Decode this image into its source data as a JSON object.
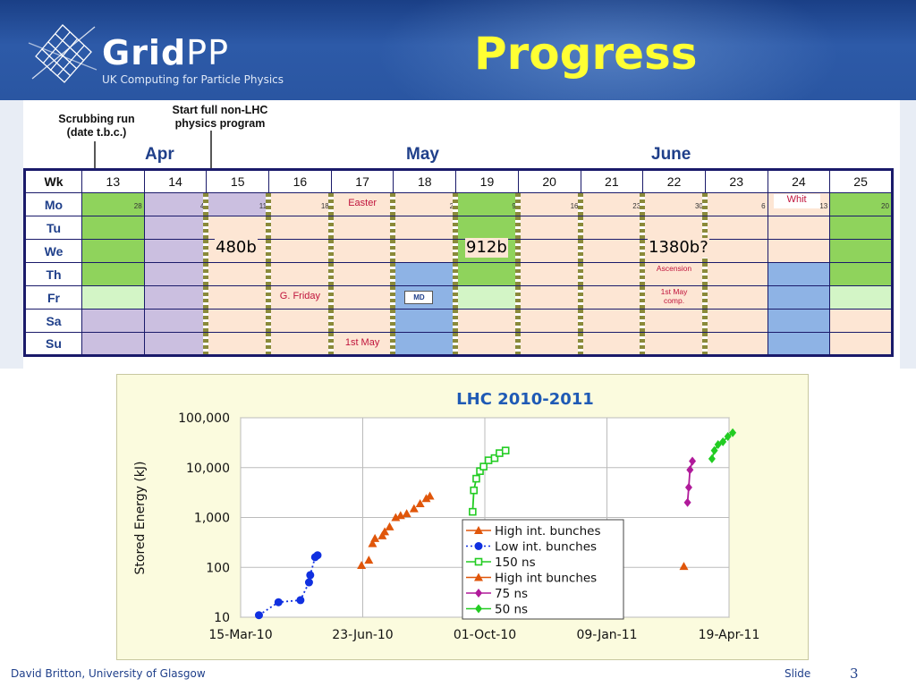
{
  "header": {
    "logo_name": "GridPP",
    "logo_bold": "Grid",
    "logo_light": "PP",
    "logo_subtitle": "UK Computing for Particle Physics",
    "slide_title": "Progress"
  },
  "schedule": {
    "annotation_scrubbing": "Scrubbing run\n(date t.b.c.)",
    "annotation_start": "Start  full non-LHC\nphysics program",
    "months": [
      "Apr",
      "May",
      "June"
    ],
    "week_header": "Wk",
    "weeks": [
      "13",
      "14",
      "15",
      "16",
      "17",
      "18",
      "19",
      "20",
      "21",
      "22",
      "23",
      "24",
      "25"
    ],
    "days": [
      "Mo",
      "Tu",
      "We",
      "Th",
      "Fr",
      "Sa",
      "Su"
    ],
    "monday_dates": [
      "28",
      "4",
      "11",
      "18",
      "",
      "2",
      "9",
      "16",
      "23",
      "30",
      "6",
      "13",
      "20"
    ],
    "events": {
      "easter": "Easter",
      "good_friday": "G. Friday",
      "may_day": "1st May",
      "md": "MD",
      "ascension": "Ascension",
      "may_comp": "1st May\ncomp.",
      "whit": "Whit"
    },
    "bunch_labels": [
      "480b",
      "912b",
      "1380b?"
    ],
    "colors": {
      "green": "#8fd35c",
      "light_green": "#d3f5c6",
      "lavender": "#cbbfe0",
      "blue": "#8eb3e5",
      "peach": "#fde6d4"
    }
  },
  "chart_data": {
    "type": "scatter",
    "title": "LHC 2010-2011",
    "ylabel": "Stored Energy (kJ)",
    "xlabel": "",
    "y_scale": "log",
    "ylim": [
      10,
      100000
    ],
    "xlim": [
      "15-Mar-10",
      "19-Apr-11"
    ],
    "x_ticks": [
      "15-Mar-10",
      "23-Jun-10",
      "01-Oct-10",
      "09-Jan-11",
      "19-Apr-11"
    ],
    "y_ticks": [
      "10",
      "100",
      "1,000",
      "10,000",
      "100,000"
    ],
    "grid": true,
    "legend_position": "bottom-right",
    "series": [
      {
        "name": "High int. bunches",
        "color": "#e0560a",
        "marker": "triangle",
        "line": "none",
        "points": [
          [
            "2010-06-22",
            110
          ],
          [
            "2010-06-28",
            140
          ],
          [
            "2010-07-01",
            300
          ],
          [
            "2010-07-03",
            380
          ],
          [
            "2010-07-09",
            430
          ],
          [
            "2010-07-11",
            520
          ],
          [
            "2010-07-15",
            650
          ],
          [
            "2010-07-20",
            1000
          ],
          [
            "2010-07-24",
            1100
          ],
          [
            "2010-07-29",
            1200
          ],
          [
            "2010-08-04",
            1500
          ],
          [
            "2010-08-09",
            1900
          ],
          [
            "2010-08-14",
            2400
          ],
          [
            "2010-08-17",
            2700
          ]
        ]
      },
      {
        "name": "Low int. bunches",
        "color": "#1030e0",
        "marker": "circle",
        "line": "dotted",
        "points": [
          [
            "2010-03-30",
            11
          ],
          [
            "2010-04-15",
            20
          ],
          [
            "2010-05-03",
            22
          ],
          [
            "2010-05-10",
            50
          ],
          [
            "2010-05-11",
            70
          ],
          [
            "2010-05-15",
            160
          ],
          [
            "2010-05-17",
            175
          ]
        ]
      },
      {
        "name": "150 ns",
        "color": "#22cc22",
        "marker": "square",
        "line": "solid",
        "points": [
          [
            "2010-09-21",
            1300
          ],
          [
            "2010-09-22",
            3500
          ],
          [
            "2010-09-24",
            6000
          ],
          [
            "2010-09-27",
            8500
          ],
          [
            "2010-09-30",
            10500
          ],
          [
            "2010-10-04",
            14000
          ],
          [
            "2010-10-09",
            15500
          ],
          [
            "2010-10-13",
            19500
          ],
          [
            "2010-10-18",
            22000
          ]
        ]
      },
      {
        "name": "High int bunches",
        "color": "#e0560a",
        "marker": "triangle",
        "line": "none",
        "points": [
          [
            "2011-03-13",
            105
          ]
        ]
      },
      {
        "name": "75 ns",
        "color": "#b01a9a",
        "marker": "diamond",
        "line": "solid",
        "points": [
          [
            "2011-03-16",
            2000
          ],
          [
            "2011-03-17",
            4000
          ],
          [
            "2011-03-18",
            9000
          ],
          [
            "2011-03-20",
            13500
          ]
        ]
      },
      {
        "name": "50 ns",
        "color": "#22cc22",
        "marker": "diamond",
        "line": "solid",
        "points": [
          [
            "2011-04-05",
            15000
          ],
          [
            "2011-04-07",
            22000
          ],
          [
            "2011-04-10",
            29000
          ],
          [
            "2011-04-14",
            33000
          ],
          [
            "2011-04-18",
            42000
          ],
          [
            "2011-04-22",
            50000
          ]
        ]
      }
    ]
  },
  "footer": {
    "author": "David Britton, University of Glasgow",
    "slide_label": "Slide",
    "slide_number": "3"
  }
}
